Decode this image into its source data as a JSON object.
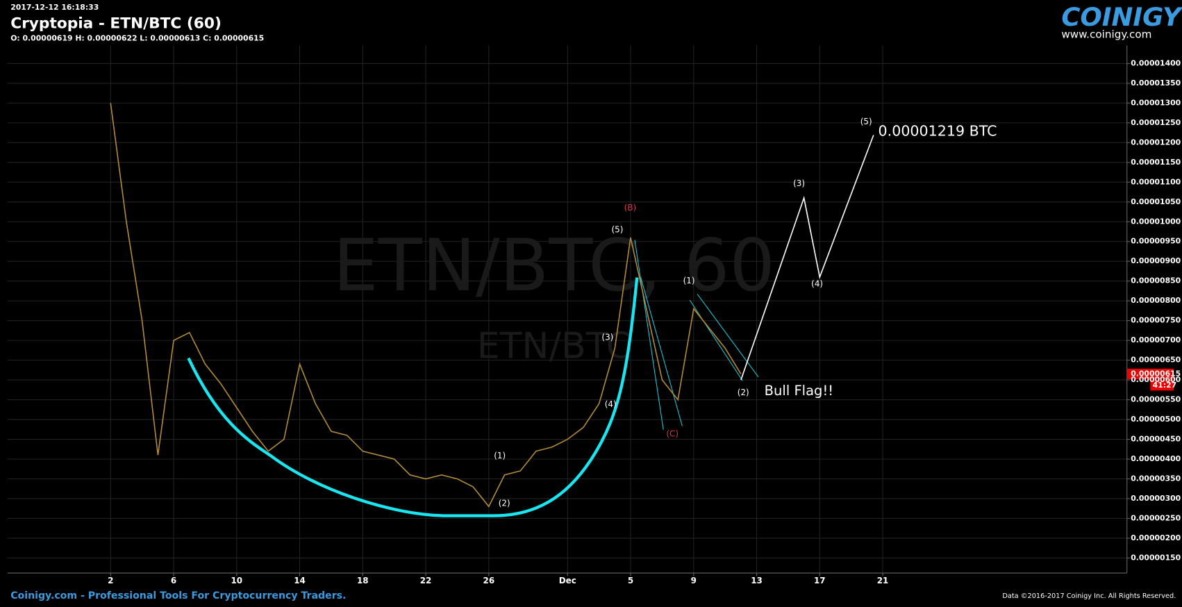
{
  "header": {
    "timestamp": "2017-12-12 16:18:33",
    "title": "Cryptopia - ETN/BTC (60)",
    "ohlc": "O: 0.00000619 H: 0.00000622 L: 0.00000613 C: 0.00000615",
    "logo": "COINIGY",
    "site": "www.coinigy.com"
  },
  "chart_data": {
    "type": "line",
    "watermark": "ETN/BTC, 60",
    "watermark_sub": "ETN/BTC",
    "price_tag": "0.00000615",
    "countdown": "41:27",
    "xlim": [
      "2017-10-26T11:00",
      "2018-01-05T12:00"
    ],
    "xticks": [
      {
        "value": "2017-11-02",
        "label": "2"
      },
      {
        "value": "2017-11-06",
        "label": "6"
      },
      {
        "value": "2017-11-10",
        "label": "10"
      },
      {
        "value": "2017-11-14",
        "label": "14"
      },
      {
        "value": "2017-11-18",
        "label": "18"
      },
      {
        "value": "2017-11-22",
        "label": "22"
      },
      {
        "value": "2017-11-26",
        "label": "26"
      },
      {
        "value": "2017-12-01",
        "label": "Dec"
      },
      {
        "value": "2017-12-05",
        "label": "5"
      },
      {
        "value": "2017-12-09",
        "label": "9"
      },
      {
        "value": "2017-12-13",
        "label": "13"
      },
      {
        "value": "2017-12-17",
        "label": "17"
      },
      {
        "value": "2017-12-21",
        "label": "21"
      }
    ],
    "ylim": [
      1.12e-06,
      1.446e-05
    ],
    "yticks": [
      {
        "value": 1.5e-06,
        "label": "0.00000150"
      },
      {
        "value": 2e-06,
        "label": "0.00000200"
      },
      {
        "value": 2.5e-06,
        "label": "0.00000250"
      },
      {
        "value": 3e-06,
        "label": "0.00000300"
      },
      {
        "value": 3.5e-06,
        "label": "0.00000350"
      },
      {
        "value": 4e-06,
        "label": "0.00000400"
      },
      {
        "value": 4.5e-06,
        "label": "0.00000450"
      },
      {
        "value": 5e-06,
        "label": "0.00000500"
      },
      {
        "value": 5.5e-06,
        "label": "0.00000550"
      },
      {
        "value": 6e-06,
        "label": "0.00000600"
      },
      {
        "value": 6.5e-06,
        "label": "0.00000650"
      },
      {
        "value": 7e-06,
        "label": "0.00000700"
      },
      {
        "value": 7.5e-06,
        "label": "0.00000750"
      },
      {
        "value": 8e-06,
        "label": "0.00000800"
      },
      {
        "value": 8.5e-06,
        "label": "0.00000850"
      },
      {
        "value": 9e-06,
        "label": "0.00000900"
      },
      {
        "value": 9.5e-06,
        "label": "0.00000950"
      },
      {
        "value": 1e-05,
        "label": "0.00001000"
      },
      {
        "value": 1.05e-05,
        "label": "0.00001050"
      },
      {
        "value": 1.1e-05,
        "label": "0.00001100"
      },
      {
        "value": 1.15e-05,
        "label": "0.00001150"
      },
      {
        "value": 1.2e-05,
        "label": "0.00001200"
      },
      {
        "value": 1.25e-05,
        "label": "0.00001250"
      },
      {
        "value": 1.3e-05,
        "label": "0.00001300"
      },
      {
        "value": 1.35e-05,
        "label": "0.00001350"
      },
      {
        "value": 1.4e-05,
        "label": "0.00001400"
      }
    ],
    "grid": true,
    "series": [
      {
        "color": "#b08a3a",
        "x": [
          "2017-11-02",
          "2017-11-03",
          "2017-11-04",
          "2017-11-05",
          "2017-11-06",
          "2017-11-07",
          "2017-11-08",
          "2017-11-09",
          "2017-11-10",
          "2017-11-11",
          "2017-11-12",
          "2017-11-13",
          "2017-11-14",
          "2017-11-15",
          "2017-11-16",
          "2017-11-17",
          "2017-11-18",
          "2017-11-19",
          "2017-11-20",
          "2017-11-21",
          "2017-11-22",
          "2017-11-23",
          "2017-11-24",
          "2017-11-25",
          "2017-11-26",
          "2017-11-27",
          "2017-11-28",
          "2017-11-29",
          "2017-11-30",
          "2017-12-01",
          "2017-12-02",
          "2017-12-03",
          "2017-12-04",
          "2017-12-05",
          "2017-12-06",
          "2017-12-07",
          "2017-12-08",
          "2017-12-09",
          "2017-12-10",
          "2017-12-11",
          "2017-12-12"
        ],
        "values": [
          1.3e-05,
          1e-05,
          7.5e-06,
          4.1e-06,
          7e-06,
          7.2e-06,
          6.4e-06,
          5.9e-06,
          5.3e-06,
          4.7e-06,
          4.2e-06,
          4.5e-06,
          6.4e-06,
          5.4e-06,
          4.7e-06,
          4.6e-06,
          4.2e-06,
          4.1e-06,
          4e-06,
          3.6e-06,
          3.5e-06,
          3.6e-06,
          3.5e-06,
          3.3e-06,
          2.8e-06,
          3.6e-06,
          3.7e-06,
          4.2e-06,
          4.3e-06,
          4.5e-06,
          4.8e-06,
          5.4e-06,
          6.8e-06,
          9.6e-06,
          7.8e-06,
          6e-06,
          5.5e-06,
          7.8e-06,
          7.3e-06,
          6.8e-06,
          6.15e-06
        ]
      },
      {
        "color": "#ffffff",
        "x": [
          "2017-12-12",
          "2017-12-16",
          "2017-12-17",
          "2017-12-20T10:00"
        ],
        "values": [
          6e-06,
          1.06e-05,
          8.6e-06,
          1.219e-05
        ]
      }
    ],
    "annotations": [
      {
        "text": "(1)",
        "color": "#ffffff"
      },
      {
        "text": "(2)",
        "color": "#ffffff"
      },
      {
        "text": "(3)",
        "color": "#ffffff"
      },
      {
        "text": "(4)",
        "color": "#ffffff"
      },
      {
        "text": "(5)",
        "color": "#ffffff"
      },
      {
        "text": "(B)",
        "color": "#e0324a"
      },
      {
        "text": "(C)",
        "color": "#e0324a"
      },
      {
        "text": "(1)",
        "color": "#ffffff"
      },
      {
        "text": "(2)",
        "color": "#ffffff"
      },
      {
        "text": "(3)",
        "color": "#ffffff"
      },
      {
        "text": "(4)",
        "color": "#ffffff"
      },
      {
        "text": "(5)",
        "color": "#ffffff"
      },
      {
        "text": "0.00001219 BTC",
        "color": "#ffffff"
      },
      {
        "text": "Bull Flag!!",
        "color": "#ffffff"
      }
    ]
  },
  "footer": {
    "left": "Coinigy.com - Professional Tools For Cryptocurrency Traders.",
    "right": "Data ©2016-2017 Coinigy Inc. All Rights Reserved."
  }
}
